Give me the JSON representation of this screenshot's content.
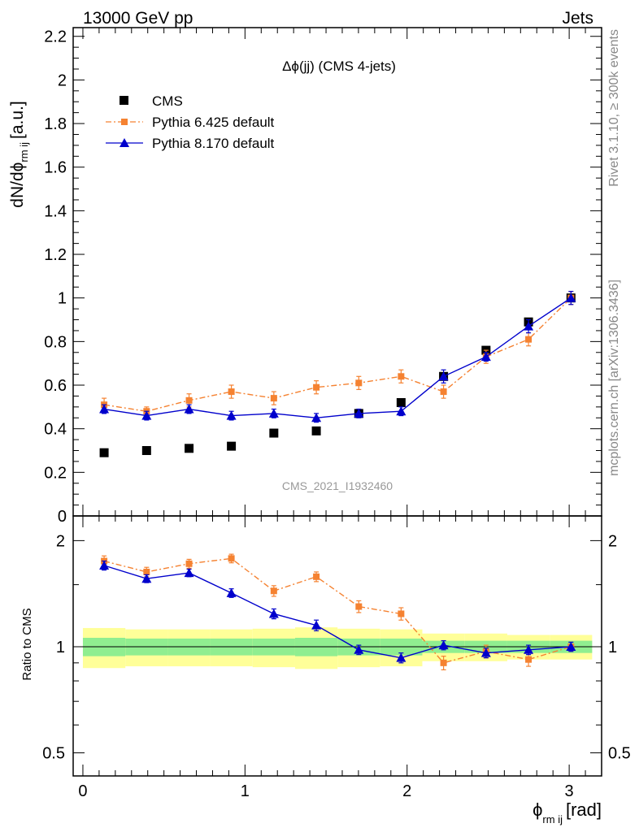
{
  "header": {
    "energy_label": "13000 GeV pp",
    "category_label": "Jets",
    "rivet_label": "Rivet 3.1.10, ≥ 300k events",
    "mcplots_label": "mcplots.cern.ch [arXiv:1306.3436]",
    "analysis_id": "CMS_2021_I1932460"
  },
  "chart_data": {
    "type": "line",
    "title": "Δϕ(jj) (CMS 4-jets)",
    "xlabel": "ϕ",
    "xlabel_sub": "rm ij",
    "xlabel_unit": "[rad]",
    "ylabel_main": "dN/dϕ",
    "ylabel_sub": "rm ij",
    "ylabel_unit": "[a.u.]",
    "ylabel_ratio": "Ratio to CMS",
    "xlim": [
      -0.06,
      3.2
    ],
    "ylim_main": [
      0,
      2.24
    ],
    "ylim_ratio": [
      0.43,
      2.35
    ],
    "x_ticks": [
      0,
      1,
      2,
      3
    ],
    "x_tick_labels": [
      "0",
      "1",
      "2",
      "3"
    ],
    "y_ticks_main": [
      0,
      0.2,
      0.4,
      0.6,
      0.8,
      1,
      1.2,
      1.4,
      1.6,
      1.8,
      2,
      2.2
    ],
    "y_tick_labels_main": [
      "0",
      "0.2",
      "0.4",
      "0.6",
      "0.8",
      "1",
      "1.2",
      "1.4",
      "1.6",
      "1.8",
      "2",
      "2.2"
    ],
    "y_ticks_ratio": [
      0.5,
      1,
      2
    ],
    "y_tick_labels_ratio": [
      "0.5",
      "1",
      "2"
    ],
    "x": [
      0.131,
      0.393,
      0.655,
      0.916,
      1.178,
      1.44,
      1.702,
      1.963,
      2.225,
      2.487,
      2.749,
      3.011
    ],
    "series": [
      {
        "name": "CMS",
        "color": "#000000",
        "marker": "square",
        "values": [
          0.29,
          0.3,
          0.31,
          0.32,
          0.38,
          0.39,
          0.47,
          0.52,
          0.64,
          0.76,
          0.89,
          1.0
        ]
      },
      {
        "name": "Pythia 6.425 default",
        "color": "#f58231",
        "marker": "square",
        "line": "dashdot",
        "values": [
          0.51,
          0.48,
          0.53,
          0.57,
          0.54,
          0.59,
          0.61,
          0.64,
          0.57,
          0.73,
          0.81,
          1.0
        ],
        "errors": [
          0.03,
          0.02,
          0.03,
          0.03,
          0.03,
          0.03,
          0.03,
          0.03,
          0.03,
          0.03,
          0.03,
          0.03
        ],
        "ratio": [
          1.75,
          1.63,
          1.72,
          1.78,
          1.44,
          1.58,
          1.3,
          1.24,
          0.9,
          0.97,
          0.92,
          1.0
        ],
        "ratio_errors": [
          0.06,
          0.05,
          0.05,
          0.05,
          0.05,
          0.05,
          0.05,
          0.05,
          0.04,
          0.04,
          0.04,
          0.03
        ]
      },
      {
        "name": "Pythia 8.170 default",
        "color": "#0000cc",
        "marker": "triangle",
        "line": "solid",
        "values": [
          0.49,
          0.46,
          0.49,
          0.46,
          0.47,
          0.45,
          0.47,
          0.48,
          0.64,
          0.73,
          0.87,
          1.0
        ],
        "errors": [
          0.02,
          0.02,
          0.02,
          0.02,
          0.02,
          0.02,
          0.02,
          0.02,
          0.03,
          0.02,
          0.03,
          0.03
        ],
        "ratio": [
          1.7,
          1.56,
          1.62,
          1.42,
          1.24,
          1.15,
          0.98,
          0.93,
          1.01,
          0.96,
          0.98,
          1.0
        ],
        "ratio_errors": [
          0.05,
          0.04,
          0.04,
          0.04,
          0.04,
          0.04,
          0.03,
          0.03,
          0.03,
          0.03,
          0.03,
          0.03
        ]
      }
    ],
    "ratio_bands": {
      "inner": [
        0.06,
        0.055,
        0.055,
        0.055,
        0.055,
        0.06,
        0.055,
        0.055,
        0.04,
        0.04,
        0.04,
        0.04
      ],
      "outer": [
        0.13,
        0.12,
        0.12,
        0.12,
        0.125,
        0.135,
        0.125,
        0.12,
        0.09,
        0.09,
        0.08,
        0.08
      ],
      "inner_color": "#90ee90",
      "outer_color": "#ffff99"
    }
  }
}
